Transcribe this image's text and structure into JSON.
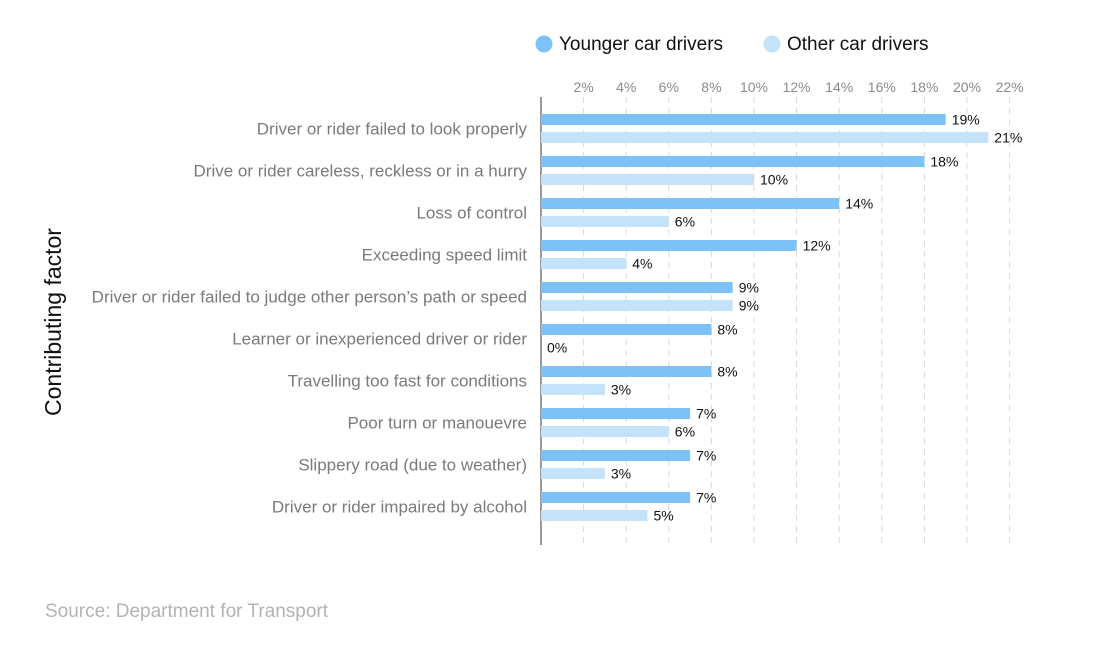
{
  "chart_data": {
    "type": "bar",
    "orientation": "horizontal",
    "ylabel": "Contributing factor",
    "xlabel": "",
    "xlim": [
      0,
      22
    ],
    "x_ticks": [
      2,
      4,
      6,
      8,
      10,
      12,
      14,
      16,
      18,
      20,
      22
    ],
    "tick_suffix": "%",
    "grid": true,
    "legend_position": "top",
    "categories": [
      "Driver or rider failed to look properly",
      "Drive or rider careless, reckless or in a hurry",
      "Loss of control",
      "Exceeding speed limit",
      "Driver or rider failed to judge other person’s path or speed",
      "Learner or inexperienced driver or rider",
      "Travelling too fast for conditions",
      "Poor turn or manouevre",
      "Slippery road (due to weather)",
      "Driver or rider impaired by alcohol"
    ],
    "series": [
      {
        "name": "Younger car drivers",
        "color": "#7cc2f7",
        "values": [
          19,
          18,
          14,
          12,
          9,
          8,
          8,
          7,
          7,
          7
        ]
      },
      {
        "name": "Other car drivers",
        "color": "#c4e3fb",
        "values": [
          21,
          10,
          6,
          4,
          9,
          0,
          3,
          6,
          3,
          5
        ]
      }
    ]
  },
  "source": "Source: Department for Transport"
}
